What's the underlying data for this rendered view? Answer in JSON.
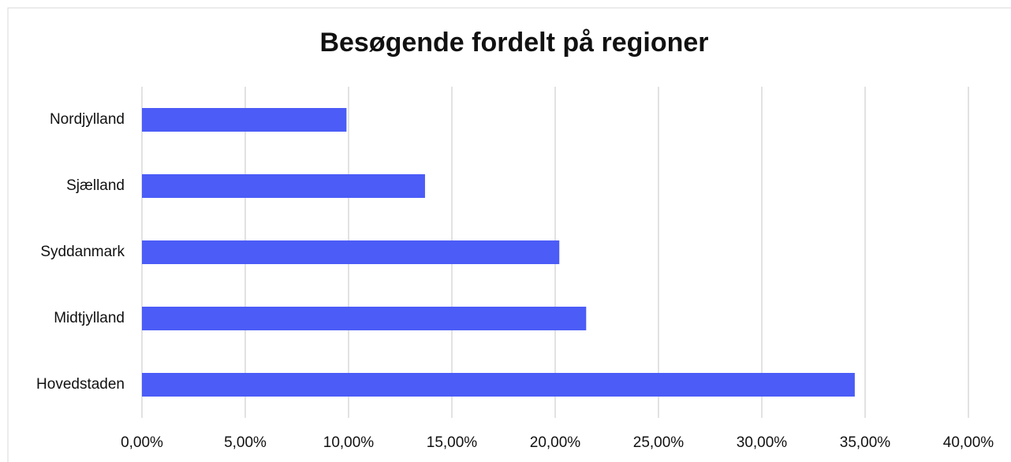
{
  "chart_data": {
    "type": "bar",
    "orientation": "horizontal",
    "title": "Besøgende fordelt på regioner",
    "categories": [
      "Nordjylland",
      "Sjælland",
      "Syddanmark",
      "Midtjylland",
      "Hovedstaden"
    ],
    "values": [
      9.9,
      13.7,
      20.2,
      21.5,
      34.5
    ],
    "color": "#4b5cf7",
    "xlim": [
      0,
      40
    ],
    "xticks": [
      {
        "value": 0,
        "label": "0,00%"
      },
      {
        "value": 5,
        "label": "5,00%"
      },
      {
        "value": 10,
        "label": "10,00%"
      },
      {
        "value": 15,
        "label": "15,00%"
      },
      {
        "value": 20,
        "label": "20,00%"
      },
      {
        "value": 25,
        "label": "25,00%"
      },
      {
        "value": 30,
        "label": "30,00%"
      },
      {
        "value": 35,
        "label": "35,00%"
      },
      {
        "value": 40,
        "label": "40,00%"
      }
    ],
    "grid": true
  }
}
